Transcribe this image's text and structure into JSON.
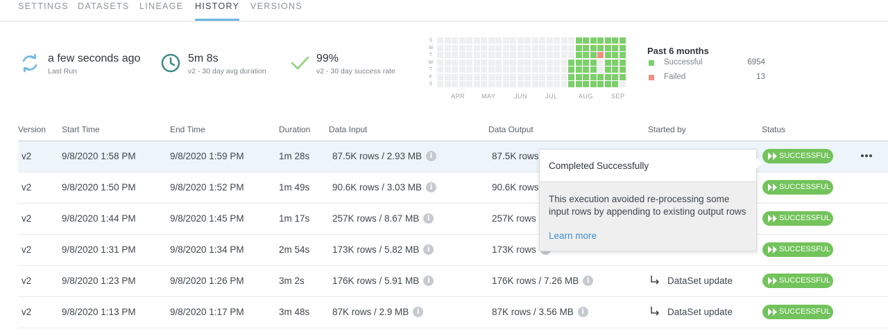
{
  "tabs": [
    {
      "label": "SETTINGS",
      "active": false
    },
    {
      "label": "DATASETS",
      "active": false
    },
    {
      "label": "LINEAGE",
      "active": false
    },
    {
      "label": "HISTORY",
      "active": true
    },
    {
      "label": "VERSIONS",
      "active": false
    }
  ],
  "summary": {
    "last_run": {
      "value": "a few seconds ago",
      "label": "Last Run",
      "icon": "refresh-icon"
    },
    "duration": {
      "value": "5m 8s",
      "label": "v2 - 30 day avg duration",
      "icon": "clock-icon"
    },
    "success_rate": {
      "value": "99%",
      "label": "v2 - 30 day success rate",
      "icon": "check-icon"
    }
  },
  "heatmap": {
    "day_labels": [
      "S",
      "M",
      "T",
      "W",
      "T",
      "F",
      "S"
    ],
    "month_labels": [
      "APR",
      "MAY",
      "JUN",
      "JUL",
      "AUG",
      "SEP"
    ],
    "weeks": 26,
    "cells": [
      [
        "0",
        "0",
        "0",
        "0",
        "0",
        "0",
        "0",
        "0",
        "0",
        "0",
        "0",
        "0",
        "0",
        "0",
        "0",
        "0",
        "0",
        "0",
        "0",
        "s",
        "s",
        "s",
        "s",
        "s",
        "s",
        "s"
      ],
      [
        "0",
        "0",
        "0",
        "0",
        "0",
        "0",
        "0",
        "0",
        "0",
        "0",
        "0",
        "0",
        "0",
        "0",
        "0",
        "0",
        "0",
        "0",
        "0",
        "s",
        "s",
        "s",
        "s",
        "s",
        "s",
        "s"
      ],
      [
        "0",
        "0",
        "0",
        "0",
        "0",
        "0",
        "0",
        "0",
        "0",
        "0",
        "0",
        "0",
        "0",
        "0",
        "0",
        "0",
        "0",
        "0",
        "0",
        "s",
        "s",
        "s",
        "f",
        "s",
        "s",
        "s"
      ],
      [
        "0",
        "0",
        "0",
        "0",
        "0",
        "0",
        "0",
        "0",
        "0",
        "0",
        "0",
        "0",
        "0",
        "0",
        "0",
        "0",
        "0",
        "0",
        "s",
        "s",
        "s",
        "s",
        "0",
        "s",
        "s",
        "s"
      ],
      [
        "0",
        "0",
        "0",
        "0",
        "0",
        "0",
        "0",
        "0",
        "0",
        "0",
        "0",
        "0",
        "0",
        "0",
        "0",
        "0",
        "0",
        "0",
        "s",
        "s",
        "s",
        "s",
        "0",
        "s",
        "s",
        "s"
      ],
      [
        "0",
        "0",
        "0",
        "0",
        "0",
        "0",
        "0",
        "0",
        "0",
        "0",
        "0",
        "0",
        "0",
        "0",
        "0",
        "0",
        "0",
        "0",
        "s",
        "s",
        "s",
        "s",
        "s",
        "s",
        "s",
        "s"
      ],
      [
        "0",
        "0",
        "0",
        "0",
        "0",
        "0",
        "0",
        "0",
        "0",
        "0",
        "0",
        "0",
        "0",
        "0",
        "0",
        "0",
        "0",
        "0",
        "s",
        "s",
        "s",
        "s",
        "s",
        "s",
        "s",
        "0"
      ]
    ],
    "colors": {
      "empty": "#eeeff1",
      "successful": "#7dcf6b",
      "failed": "#ef8f85"
    }
  },
  "legend": {
    "title": "Past 6 months",
    "items": [
      {
        "label": "Successful",
        "count": "6954",
        "color": "#7dcf6b"
      },
      {
        "label": "Failed",
        "count": "13",
        "color": "#ef8f85"
      }
    ]
  },
  "table": {
    "headers": [
      "Version",
      "Start Time",
      "End Time",
      "Duration",
      "Data Input",
      "Data Output",
      "Started by",
      "Status"
    ],
    "rows": [
      {
        "version": "v2",
        "start": "9/8/2020 1:58 PM",
        "end": "9/8/2020 1:59 PM",
        "duration": "1m 28s",
        "input": "87.5K rows / 2.93 MB",
        "output": "87.5K rows",
        "started_by": "",
        "status": "SUCCESSFUL"
      },
      {
        "version": "v2",
        "start": "9/8/2020 1:50 PM",
        "end": "9/8/2020 1:52 PM",
        "duration": "1m 49s",
        "input": "90.6K rows / 3.03 MB",
        "output": "90.6K rows",
        "started_by": "",
        "status": "SUCCESSFUL"
      },
      {
        "version": "v2",
        "start": "9/8/2020 1:44 PM",
        "end": "9/8/2020 1:45 PM",
        "duration": "1m 17s",
        "input": "257K rows / 8.67 MB",
        "output": "257K rows",
        "started_by": "",
        "status": "SUCCESSFUL"
      },
      {
        "version": "v2",
        "start": "9/8/2020 1:31 PM",
        "end": "9/8/2020 1:34 PM",
        "duration": "2m 54s",
        "input": "173K rows / 5.82 MB",
        "output": "173K rows",
        "started_by": "",
        "status": "SUCCESSFUL"
      },
      {
        "version": "v2",
        "start": "9/8/2020 1:23 PM",
        "end": "9/8/2020 1:26 PM",
        "duration": "3m 2s",
        "input": "176K rows / 5.91 MB",
        "output": "176K rows / 7.26 MB",
        "started_by": "DataSet update",
        "status": "SUCCESSFUL"
      },
      {
        "version": "v2",
        "start": "9/8/2020 1:13 PM",
        "end": "9/8/2020 1:17 PM",
        "duration": "3m 48s",
        "input": "87K rows / 2.9 MB",
        "output": "87K rows / 3.56 MB",
        "started_by": "DataSet update",
        "status": "SUCCESSFUL"
      }
    ],
    "status_color": "#72c35b",
    "highlight_color": "#edf5fb"
  },
  "tooltip": {
    "title": "Completed Successfully",
    "body": "This execution avoided re-processing some input rows by appending to existing output rows",
    "link": "Learn more"
  }
}
